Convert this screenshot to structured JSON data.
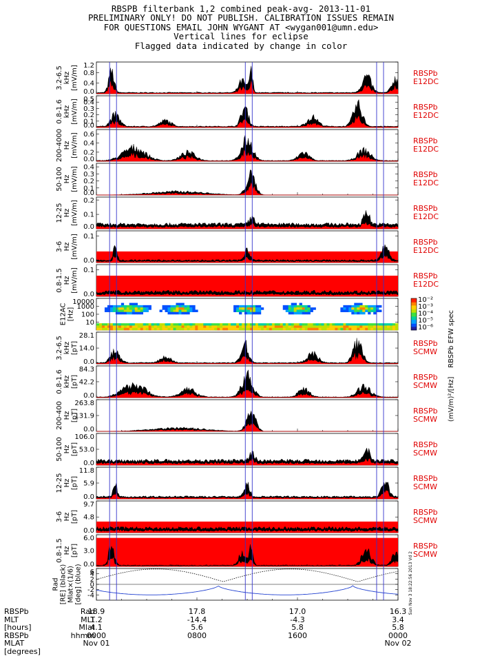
{
  "header": {
    "line1": "RBSPB filterbank 1,2 combined peak-avg- 2013-11-01",
    "line2": "PRELIMINARY ONLY! DO NOT PUBLISH. CALIBRATION ISSUES REMAIN",
    "line3": "FOR QUESTIONS EMAIL JOHN WYGANT AT <wygan001@umn.edu>",
    "line4": "Vertical lines for eclipse",
    "line5": "Flagged data indicated by change in color"
  },
  "colors": {
    "peak": "#000000",
    "avg": "#ff0000",
    "eclipse": "#3333cc",
    "label": "#e00000"
  },
  "colorbar": {
    "title": "RBSPb EFW spec",
    "unit": "(mV/m)²/[Hz]",
    "ticks": [
      "10⁻²",
      "10⁻³",
      "10⁻⁴",
      "10⁻⁵",
      "10⁻⁶"
    ]
  },
  "stamp": "Sun Nov 3 18:22:56 2013 Vd 2",
  "chart_data": [
    {
      "type": "line",
      "band": "3.2-6.5",
      "ylabel_lines": [
        "3.2-6.5",
        "kHz",
        "[mV/m]"
      ],
      "source": [
        "RBSPb",
        "E12DC"
      ],
      "ylim": [
        0,
        1.2
      ],
      "ticks": [
        "0.0",
        "0.4",
        "0.8",
        "1.2"
      ],
      "tick_values": [
        0,
        0.4,
        0.8,
        1.2
      ]
    },
    {
      "type": "line",
      "band": "0.8-1.6",
      "ylabel_lines": [
        "0.8-1.6",
        "kHz",
        "[mV/m]"
      ],
      "source": [
        "RBSPb",
        "E12DC"
      ],
      "ylim": [
        0,
        0.5
      ],
      "ticks": [
        "0.0",
        "0.1",
        "0.2",
        "0.3",
        "0.4",
        "0.5"
      ],
      "tick_values": [
        0,
        0.1,
        0.2,
        0.3,
        0.4,
        0.5
      ]
    },
    {
      "type": "line",
      "band": "200-4000",
      "ylabel_lines": [
        "200-4000",
        "Hz",
        "[mV/m]"
      ],
      "source": [
        "RBSPb",
        "E12DC"
      ],
      "ylim": [
        0,
        0.7
      ],
      "ticks": [
        "0.0",
        "0.2",
        "0.4",
        "0.6"
      ],
      "tick_values": [
        0,
        0.2,
        0.4,
        0.6
      ]
    },
    {
      "type": "line",
      "band": "50-100",
      "ylabel_lines": [
        "50-100",
        "Hz",
        "[mV/m]"
      ],
      "source": [
        "RBSPb",
        "E12DC"
      ],
      "ylim": [
        0,
        0.45
      ],
      "ticks": [
        "0.0",
        "0.1",
        "0.2",
        "0.3",
        "0.4"
      ],
      "tick_values": [
        0,
        0.1,
        0.2,
        0.3,
        0.4
      ]
    },
    {
      "type": "line",
      "band": "12-25",
      "ylabel_lines": [
        "12-25",
        "Hz",
        "[mV/m]"
      ],
      "source": [
        "RBSPb",
        "E12DC"
      ],
      "ylim": [
        0,
        0.22
      ],
      "ticks": [
        "0.0",
        "0.1",
        "0.2"
      ],
      "tick_values": [
        0,
        0.1,
        0.2
      ]
    },
    {
      "type": "line",
      "band": "3-6",
      "ylabel_lines": [
        "3-6",
        "Hz",
        "[mV/m]"
      ],
      "source": [
        "RBSPb",
        "E12DC"
      ],
      "ylim": [
        0,
        0.12
      ],
      "ticks": [
        "0.0",
        "0.1"
      ],
      "tick_values": [
        0,
        0.1
      ]
    },
    {
      "type": "line",
      "band": "0.8-1.5",
      "ylabel_lines": [
        "0.8-1.5",
        "Hz",
        "[mV/m]"
      ],
      "source": [
        "RBSPb",
        "E12DC"
      ],
      "ylim": [
        0,
        0.12
      ],
      "ticks": [
        "0.0",
        "0.1"
      ],
      "tick_values": [
        0,
        0.1
      ]
    },
    {
      "type": "heatmap",
      "band": "E12AC",
      "ylabel_lines": [
        "E12AC",
        "[Hz]"
      ],
      "source": [],
      "ylim": [
        1,
        10000
      ],
      "ticks": [
        "10000",
        "1000",
        "100",
        "10"
      ],
      "tick_values": [
        10000,
        1000,
        100,
        10
      ]
    },
    {
      "type": "line",
      "band": "3.2-6.5",
      "ylabel_lines": [
        "3.2-6.5",
        "kHz",
        "[pT]"
      ],
      "source": [
        "RBSPb",
        "SCMW"
      ],
      "ylim": [
        0,
        28.1
      ],
      "ticks": [
        "28.1",
        "14.0",
        "0.0"
      ],
      "tick_values": [
        28.1,
        14.0,
        0
      ]
    },
    {
      "type": "line",
      "band": "0.8-1.6",
      "ylabel_lines": [
        "0.8-1.6",
        "kHz",
        "[pT]"
      ],
      "source": [
        "RBSPb",
        "SCMW"
      ],
      "ylim": [
        0,
        84.3
      ],
      "ticks": [
        "84.3",
        "42.2",
        "0.0"
      ],
      "tick_values": [
        84.3,
        42.2,
        0
      ]
    },
    {
      "type": "line",
      "band": "200-400",
      "ylabel_lines": [
        "200-400",
        "Hz",
        "[pT]"
      ],
      "source": [
        "RBSPb",
        "SCMW"
      ],
      "ylim": [
        0,
        263.8
      ],
      "ticks": [
        "263.8",
        "131.9",
        "0.0"
      ],
      "tick_values": [
        263.8,
        131.9,
        0
      ]
    },
    {
      "type": "line",
      "band": "50-100",
      "ylabel_lines": [
        "50-100",
        "Hz",
        "[pT]"
      ],
      "source": [
        "RBSPb",
        "SCMW"
      ],
      "ylim": [
        0,
        106.0
      ],
      "ticks": [
        "106.0",
        "53.0",
        "0.0"
      ],
      "tick_values": [
        106.0,
        53.0,
        0
      ]
    },
    {
      "type": "line",
      "band": "12-25",
      "ylabel_lines": [
        "12-25",
        "Hz",
        "[pT]"
      ],
      "source": [
        "RBSPb",
        "SCMW"
      ],
      "ylim": [
        0,
        11.8
      ],
      "ticks": [
        "11.8",
        "5.9",
        "0.0"
      ],
      "tick_values": [
        11.8,
        5.9,
        0
      ]
    },
    {
      "type": "line",
      "band": "3-6",
      "ylabel_lines": [
        "3-6",
        "Hz",
        "[pT]"
      ],
      "source": [
        "RBSPb",
        "SCMW"
      ],
      "ylim": [
        0,
        9.7
      ],
      "ticks": [
        "9.7",
        "4.8",
        "0.0"
      ],
      "tick_values": [
        9.7,
        4.8,
        0
      ]
    },
    {
      "type": "line",
      "band": "0.8-1.5",
      "ylabel_lines": [
        "0.8-1.5",
        "Hz",
        "[pT]"
      ],
      "source": [
        "RBSPb",
        "SCMW"
      ],
      "ylim": [
        0,
        6.0
      ],
      "ticks": [
        "6.0",
        "3.0",
        "0.0"
      ],
      "tick_values": [
        6.0,
        3.0,
        0
      ]
    },
    {
      "type": "line",
      "band": "ephemeris",
      "ylabel_lines": [
        "Rad",
        "[RE] (black)",
        "Mlat×(1/6)",
        "[deg] (blue)"
      ],
      "source": [],
      "ylim": [
        -6,
        6
      ],
      "ticks": [
        "6",
        "4",
        "2",
        "0",
        "-2",
        "-4"
      ],
      "tick_values": [
        6,
        4,
        2,
        0,
        -2,
        -4
      ]
    }
  ],
  "eclipse_times_hours": [
    1.05,
    1.6,
    11.85,
    12.4,
    22.3,
    22.85
  ],
  "footer": {
    "left_labels": [
      "RBSPb",
      "MLT",
      "[hours]",
      "RBSPb",
      "MLAT",
      "[degrees]"
    ],
    "row_labels": [
      "Rad",
      "MLT",
      "Mlat",
      "hhmm",
      ""
    ],
    "columns": [
      {
        "rad": "18.9",
        "mlt": "1.2",
        "mlat": "4.1",
        "time": "0000",
        "date": "Nov 01"
      },
      {
        "rad": "17.8",
        "mlt": "-14.4",
        "mlat": "5.6",
        "time": "0800",
        "date": ""
      },
      {
        "rad": "17.0",
        "mlt": "-4.3",
        "mlat": "5.8",
        "time": "1600",
        "date": ""
      },
      {
        "rad": "16.3",
        "mlt": "3.4",
        "mlat": "5.8",
        "time": "0000",
        "date": "Nov 02"
      }
    ]
  }
}
